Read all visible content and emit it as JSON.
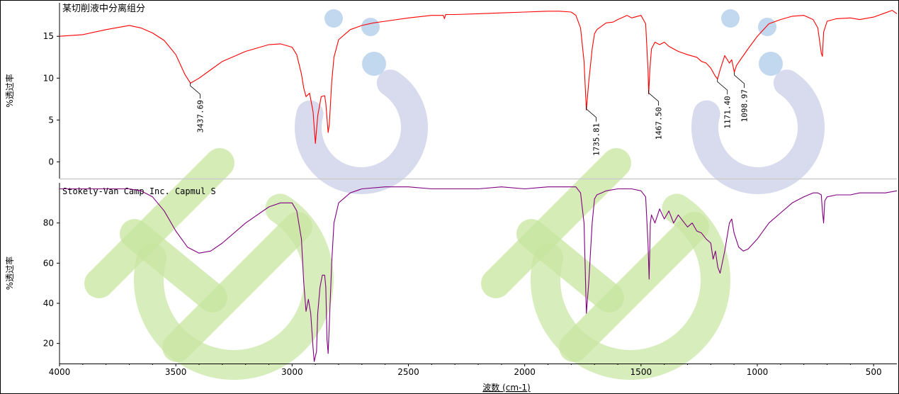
{
  "chart_data": [
    {
      "type": "line",
      "title": "某切削液中分离组分",
      "ylabel": "%透过率",
      "xlim": [
        4000,
        400
      ],
      "ylim": [
        -2,
        19
      ],
      "yticks": [
        0,
        5,
        10,
        15
      ],
      "color": "#ff0000",
      "peaks": [
        {
          "x": 3437.69,
          "label": "3437.69"
        },
        {
          "x": 1735.81,
          "label": "1735.81"
        },
        {
          "x": 1467.5,
          "label": "1467.50"
        },
        {
          "x": 1171.4,
          "label": "1171.40"
        },
        {
          "x": 1098.97,
          "label": "1098.97"
        }
      ],
      "series": [
        {
          "x": [
            4000,
            3900,
            3800,
            3700,
            3650,
            3600,
            3550,
            3500,
            3460,
            3437,
            3400,
            3350,
            3300,
            3200,
            3100,
            3050,
            3000,
            2980,
            2960,
            2950,
            2940,
            2925,
            2910,
            2900,
            2890,
            2875,
            2860,
            2855,
            2845,
            2840,
            2830,
            2820,
            2800,
            2750,
            2700,
            2650,
            2600,
            2500,
            2400,
            2350,
            2345,
            2340,
            2300,
            2200,
            2100,
            2000,
            1900,
            1850,
            1800,
            1780,
            1760,
            1745,
            1735,
            1725,
            1710,
            1700,
            1690,
            1670,
            1650,
            1620,
            1600,
            1560,
            1540,
            1500,
            1480,
            1470,
            1467,
            1462,
            1455,
            1440,
            1420,
            1400,
            1380,
            1360,
            1340,
            1300,
            1260,
            1240,
            1220,
            1200,
            1180,
            1171,
            1160,
            1140,
            1120,
            1110,
            1099,
            1090,
            1070,
            1040,
            1000,
            950,
            900,
            850,
            800,
            760,
            740,
            725,
            720,
            715,
            700,
            660,
            600,
            560,
            500,
            450,
            420,
            400
          ],
          "y": [
            15.0,
            15.2,
            15.8,
            16.3,
            16.0,
            15.4,
            14.5,
            12.8,
            10.4,
            9.4,
            10.0,
            11.0,
            12.0,
            13.2,
            14.0,
            14.1,
            13.7,
            12.8,
            10.5,
            8.8,
            7.8,
            8.2,
            6.0,
            2.2,
            5.5,
            7.8,
            7.9,
            7.0,
            3.5,
            4.5,
            9.5,
            12.5,
            14.6,
            15.8,
            16.3,
            16.6,
            16.8,
            17.2,
            17.5,
            17.5,
            17.1,
            17.6,
            17.6,
            17.7,
            17.8,
            17.9,
            18.0,
            18.0,
            17.9,
            17.5,
            16.0,
            12.0,
            6.2,
            9.5,
            13.5,
            15.3,
            15.8,
            16.2,
            16.6,
            16.7,
            17.0,
            17.5,
            17.2,
            17.5,
            16.5,
            11.0,
            8.1,
            11.0,
            13.5,
            14.3,
            14.0,
            14.3,
            13.8,
            13.5,
            13.2,
            12.8,
            12.5,
            12.0,
            11.8,
            11.2,
            10.2,
            9.9,
            11.0,
            12.7,
            11.8,
            12.2,
            10.7,
            11.5,
            12.3,
            13.5,
            15.0,
            16.5,
            17.0,
            17.4,
            17.5,
            17.0,
            16.0,
            13.0,
            12.6,
            15.5,
            16.8,
            17.1,
            17.2,
            17.0,
            17.3,
            17.8,
            18.1,
            17.7
          ]
        }
      ]
    },
    {
      "type": "line",
      "title": "Stokely-Van Camp Inc. Capmul S",
      "ylabel": "%透过率",
      "xlabel": "波数 (cm-1)",
      "xlim": [
        4000,
        400
      ],
      "ylim": [
        10,
        100
      ],
      "yticks": [
        20,
        40,
        60,
        80
      ],
      "xticks": [
        4000,
        3500,
        3000,
        2500,
        2000,
        1500,
        1000,
        500
      ],
      "color": "#800080",
      "series": [
        {
          "x": [
            4000,
            3800,
            3700,
            3650,
            3600,
            3550,
            3500,
            3450,
            3400,
            3350,
            3300,
            3200,
            3100,
            3050,
            3000,
            2980,
            2960,
            2950,
            2940,
            2930,
            2920,
            2910,
            2905,
            2895,
            2890,
            2880,
            2870,
            2860,
            2855,
            2850,
            2845,
            2840,
            2830,
            2820,
            2800,
            2750,
            2700,
            2600,
            2500,
            2400,
            2300,
            2200,
            2100,
            2000,
            1900,
            1850,
            1800,
            1780,
            1760,
            1745,
            1735,
            1725,
            1710,
            1700,
            1690,
            1670,
            1650,
            1600,
            1560,
            1540,
            1500,
            1480,
            1470,
            1465,
            1460,
            1455,
            1440,
            1420,
            1400,
            1380,
            1360,
            1340,
            1300,
            1280,
            1260,
            1240,
            1220,
            1200,
            1190,
            1180,
            1170,
            1160,
            1140,
            1120,
            1110,
            1100,
            1080,
            1060,
            1040,
            1000,
            950,
            900,
            850,
            800,
            780,
            760,
            740,
            725,
            720,
            715,
            710,
            700,
            660,
            600,
            560,
            500,
            450,
            400
          ],
          "y": [
            97,
            97,
            97,
            96,
            93,
            86,
            76,
            68,
            65,
            66,
            70,
            80,
            88,
            90,
            90,
            86,
            72,
            50,
            36,
            42,
            35,
            18,
            11,
            16,
            35,
            48,
            54,
            54,
            48,
            22,
            15,
            30,
            60,
            80,
            90,
            95,
            97,
            98,
            98,
            97,
            97,
            97,
            98,
            97,
            98,
            98,
            98,
            98,
            95,
            80,
            35,
            50,
            80,
            92,
            94,
            95,
            96,
            97,
            97,
            97,
            96,
            93,
            70,
            52,
            80,
            84,
            80,
            87,
            82,
            86,
            80,
            84,
            78,
            80,
            76,
            75,
            72,
            70,
            62,
            66,
            58,
            55,
            66,
            80,
            82,
            75,
            68,
            66,
            67,
            72,
            80,
            85,
            90,
            93,
            94,
            95,
            95,
            94,
            86,
            80,
            91,
            93,
            94,
            94,
            95,
            95,
            95,
            96
          ]
        }
      ]
    }
  ],
  "watermark": {
    "text": "HC",
    "colors": {
      "letter": "#c8e6a0",
      "arc": "#c8cce6",
      "dot": "#a8c8e8"
    }
  }
}
